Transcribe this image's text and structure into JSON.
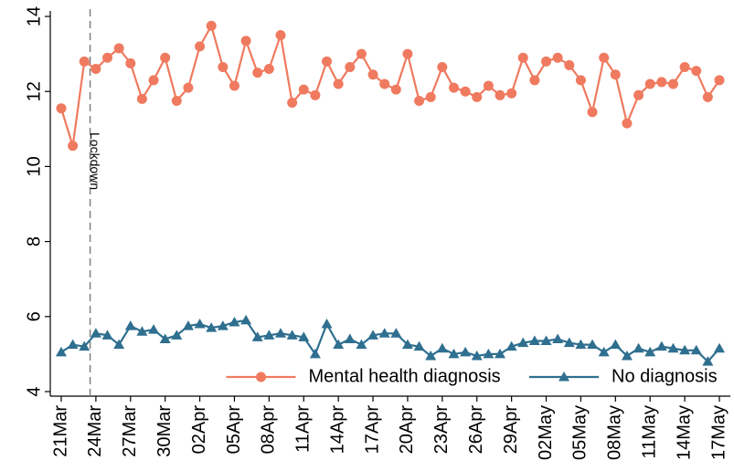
{
  "chart_data": {
    "type": "line",
    "categories": [
      "21Mar",
      null,
      null,
      "24Mar",
      null,
      null,
      "27Mar",
      null,
      null,
      "30Mar",
      null,
      null,
      "02Apr",
      null,
      null,
      "05Apr",
      null,
      null,
      "08Apr",
      null,
      null,
      "11Apr",
      null,
      null,
      "14Apr",
      null,
      null,
      "17Apr",
      null,
      null,
      "20Apr",
      null,
      null,
      "23Apr",
      null,
      null,
      "26Apr",
      null,
      null,
      "29Apr",
      null,
      null,
      "02May",
      null,
      null,
      "05May",
      null,
      null,
      "08May",
      null,
      null,
      "11May",
      null,
      null,
      "14May",
      null,
      null,
      "17May"
    ],
    "series": [
      {
        "name": "Mental health diagnosis",
        "color": "#ef7a5f",
        "marker": "circle",
        "values": [
          11.55,
          10.55,
          12.8,
          12.6,
          12.9,
          13.15,
          12.75,
          11.8,
          12.3,
          12.9,
          11.75,
          12.1,
          13.2,
          13.75,
          12.65,
          12.15,
          13.35,
          12.5,
          12.6,
          13.5,
          11.7,
          12.05,
          11.9,
          12.8,
          12.2,
          12.65,
          13.0,
          12.45,
          12.2,
          12.05,
          13.0,
          11.75,
          11.85,
          12.65,
          12.1,
          12.0,
          11.85,
          12.15,
          11.9,
          11.95,
          12.9,
          12.3,
          12.8,
          12.9,
          12.7,
          12.3,
          11.45,
          12.9,
          12.45,
          11.15,
          11.9,
          12.2,
          12.25,
          12.2,
          12.65,
          12.55,
          11.85,
          12.3
        ]
      },
      {
        "name": "No diagnosis",
        "color": "#2f6f8f",
        "marker": "triangle",
        "values": [
          5.05,
          5.25,
          5.2,
          5.55,
          5.5,
          5.25,
          5.75,
          5.6,
          5.65,
          5.4,
          5.5,
          5.75,
          5.8,
          5.7,
          5.75,
          5.85,
          5.9,
          5.45,
          5.5,
          5.55,
          5.5,
          5.45,
          5.0,
          5.8,
          5.25,
          5.4,
          5.25,
          5.5,
          5.55,
          5.55,
          5.25,
          5.2,
          4.95,
          5.15,
          5.0,
          5.05,
          4.95,
          5.0,
          5.0,
          5.2,
          5.3,
          5.35,
          5.35,
          5.4,
          5.3,
          5.25,
          5.25,
          5.05,
          5.25,
          4.95,
          5.15,
          5.05,
          5.2,
          5.15,
          5.1,
          5.1,
          4.8,
          5.15
        ]
      }
    ],
    "ylim": [
      4,
      14
    ],
    "yticks": [
      4,
      6,
      8,
      10,
      12,
      14
    ],
    "grid": false,
    "legend": "bottom-right",
    "annotation": {
      "text": "Lockdown",
      "x": 2.5,
      "color": "#808080"
    }
  }
}
